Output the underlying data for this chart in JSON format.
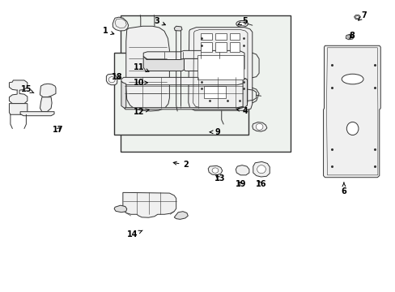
{
  "figsize": [
    4.89,
    3.6
  ],
  "dpi": 100,
  "bg": "#ffffff",
  "lw": 0.7,
  "gray": "#333333",
  "fill_light": "#f0f0f0",
  "fill_med": "#e0e0e0",
  "box_fill": "#eef2ee",
  "labels": {
    "1": [
      0.265,
      0.895,
      0.295,
      0.882
    ],
    "2": [
      0.47,
      0.435,
      0.43,
      0.445
    ],
    "3": [
      0.395,
      0.93,
      0.425,
      0.912
    ],
    "4": [
      0.62,
      0.62,
      0.59,
      0.63
    ],
    "5": [
      0.62,
      0.93,
      0.6,
      0.915
    ],
    "6": [
      0.87,
      0.345,
      0.87,
      0.375
    ],
    "7": [
      0.92,
      0.948,
      0.905,
      0.93
    ],
    "8": [
      0.89,
      0.88,
      0.88,
      0.862
    ],
    "9": [
      0.55,
      0.548,
      0.528,
      0.548
    ],
    "10": [
      0.35,
      0.718,
      0.375,
      0.718
    ],
    "11": [
      0.35,
      0.77,
      0.378,
      0.755
    ],
    "12": [
      0.35,
      0.618,
      0.378,
      0.625
    ],
    "13": [
      0.555,
      0.388,
      0.54,
      0.402
    ],
    "14": [
      0.335,
      0.195,
      0.36,
      0.21
    ],
    "15": [
      0.065,
      0.695,
      0.085,
      0.682
    ],
    "16": [
      0.66,
      0.368,
      0.648,
      0.388
    ],
    "17": [
      0.145,
      0.555,
      0.158,
      0.57
    ],
    "18": [
      0.295,
      0.738,
      0.31,
      0.725
    ],
    "19": [
      0.61,
      0.368,
      0.6,
      0.385
    ]
  }
}
